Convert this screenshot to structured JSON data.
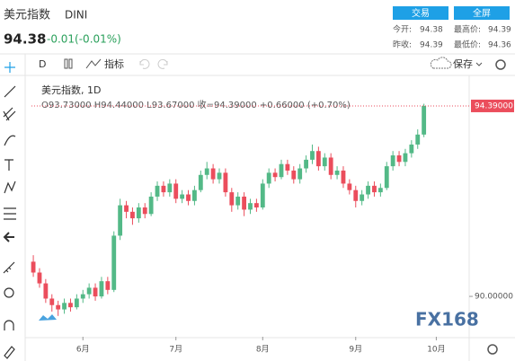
{
  "header": {
    "title": "美元指数",
    "symbol": "DINI",
    "price": "94.38",
    "change": "-0.01(-0.01%)",
    "buttons": [
      "交易",
      "全屏"
    ],
    "stats": [
      [
        "今开:",
        "94.38",
        "最高价:",
        "94.39"
      ],
      [
        "昨收:",
        "94.39",
        "最低价:",
        "94.36"
      ]
    ]
  },
  "toolbar": {
    "interval": "D",
    "indicators": "指标",
    "save": "保存"
  },
  "legend": {
    "name": "美元指数, 1D",
    "ohlc": "O93.73000 H94.44000 L93.67000 收=94.39000 +0.66000 (+0.70%)"
  },
  "watermark": "FX168",
  "chart_data": {
    "type": "candlestick",
    "up_color": "#53b987",
    "down_color": "#eb4d5c",
    "open": [
      90.8,
      90.55,
      90.3,
      89.95,
      89.8,
      89.7,
      89.85,
      89.75,
      89.95,
      90.05,
      90.2,
      90.0,
      90.35,
      90.15,
      91.4,
      92.1,
      91.95,
      91.8,
      92.05,
      91.9,
      92.3,
      92.55,
      92.4,
      92.6,
      92.25,
      92.35,
      92.2,
      92.45,
      92.8,
      92.95,
      92.7,
      92.85,
      92.4,
      92.1,
      92.3,
      92.0,
      92.15,
      92.05,
      92.6,
      92.85,
      92.75,
      93.05,
      92.9,
      92.7,
      92.95,
      93.15,
      93.35,
      93.0,
      93.2,
      92.8,
      92.9,
      92.6,
      92.45,
      92.2,
      92.35,
      92.55,
      92.4,
      92.5,
      93.0,
      93.25,
      93.1,
      93.3,
      93.5,
      93.73
    ],
    "high": [
      90.95,
      90.65,
      90.4,
      90.05,
      89.9,
      89.95,
      89.95,
      90.05,
      90.15,
      90.3,
      90.3,
      90.45,
      90.45,
      91.5,
      92.25,
      92.2,
      92.05,
      92.15,
      92.15,
      92.4,
      92.65,
      92.65,
      92.7,
      92.7,
      92.45,
      92.45,
      92.55,
      92.9,
      93.1,
      93.05,
      92.95,
      92.95,
      92.5,
      92.4,
      92.4,
      92.25,
      92.25,
      92.7,
      92.95,
      92.95,
      93.15,
      93.15,
      93.0,
      93.05,
      93.25,
      93.5,
      93.45,
      93.3,
      93.3,
      93.0,
      93.0,
      92.7,
      92.55,
      92.45,
      92.65,
      92.65,
      92.6,
      93.1,
      93.35,
      93.35,
      93.4,
      93.6,
      93.85,
      94.44
    ],
    "low": [
      90.45,
      90.2,
      89.85,
      89.65,
      89.55,
      89.6,
      89.65,
      89.7,
      89.85,
      89.95,
      89.9,
      89.95,
      90.05,
      90.1,
      91.3,
      91.8,
      91.65,
      91.7,
      91.8,
      91.85,
      92.2,
      92.3,
      92.3,
      92.15,
      92.15,
      92.1,
      92.1,
      92.4,
      92.7,
      92.6,
      92.6,
      92.3,
      91.95,
      92.0,
      91.85,
      91.9,
      91.95,
      92.0,
      92.5,
      92.65,
      92.7,
      92.8,
      92.6,
      92.6,
      92.85,
      93.05,
      92.9,
      92.9,
      92.7,
      92.7,
      92.5,
      92.35,
      92.05,
      92.1,
      92.25,
      92.3,
      92.3,
      92.45,
      92.9,
      93.0,
      93.0,
      93.2,
      93.4,
      93.67
    ],
    "close": [
      90.55,
      90.3,
      89.95,
      89.8,
      89.7,
      89.85,
      89.75,
      89.95,
      90.05,
      90.2,
      90.0,
      90.35,
      90.15,
      91.4,
      92.1,
      91.95,
      91.8,
      92.05,
      91.9,
      92.3,
      92.55,
      92.4,
      92.6,
      92.25,
      92.35,
      92.2,
      92.45,
      92.8,
      92.95,
      92.7,
      92.85,
      92.4,
      92.1,
      92.3,
      92.0,
      92.15,
      92.05,
      92.6,
      92.85,
      92.75,
      93.05,
      92.9,
      92.7,
      92.95,
      93.15,
      93.35,
      93.0,
      93.2,
      92.8,
      92.9,
      92.6,
      92.45,
      92.2,
      92.35,
      92.55,
      92.4,
      92.5,
      93.0,
      93.25,
      93.1,
      93.3,
      93.5,
      93.73,
      94.39
    ],
    "xlim": [
      -0.3,
      70.3
    ],
    "xticks": [
      {
        "value": 8,
        "label": "6月"
      },
      {
        "value": 23,
        "label": "7月"
      },
      {
        "value": 37,
        "label": "8月"
      },
      {
        "value": 52,
        "label": "9月"
      },
      {
        "value": 65,
        "label": "10月"
      }
    ],
    "ylim": [
      89.07,
      95.01
    ],
    "yticks": [
      {
        "value": 90,
        "label": "90.00000"
      }
    ],
    "last_price": {
      "value": 94.39,
      "label": "94.39000"
    }
  }
}
